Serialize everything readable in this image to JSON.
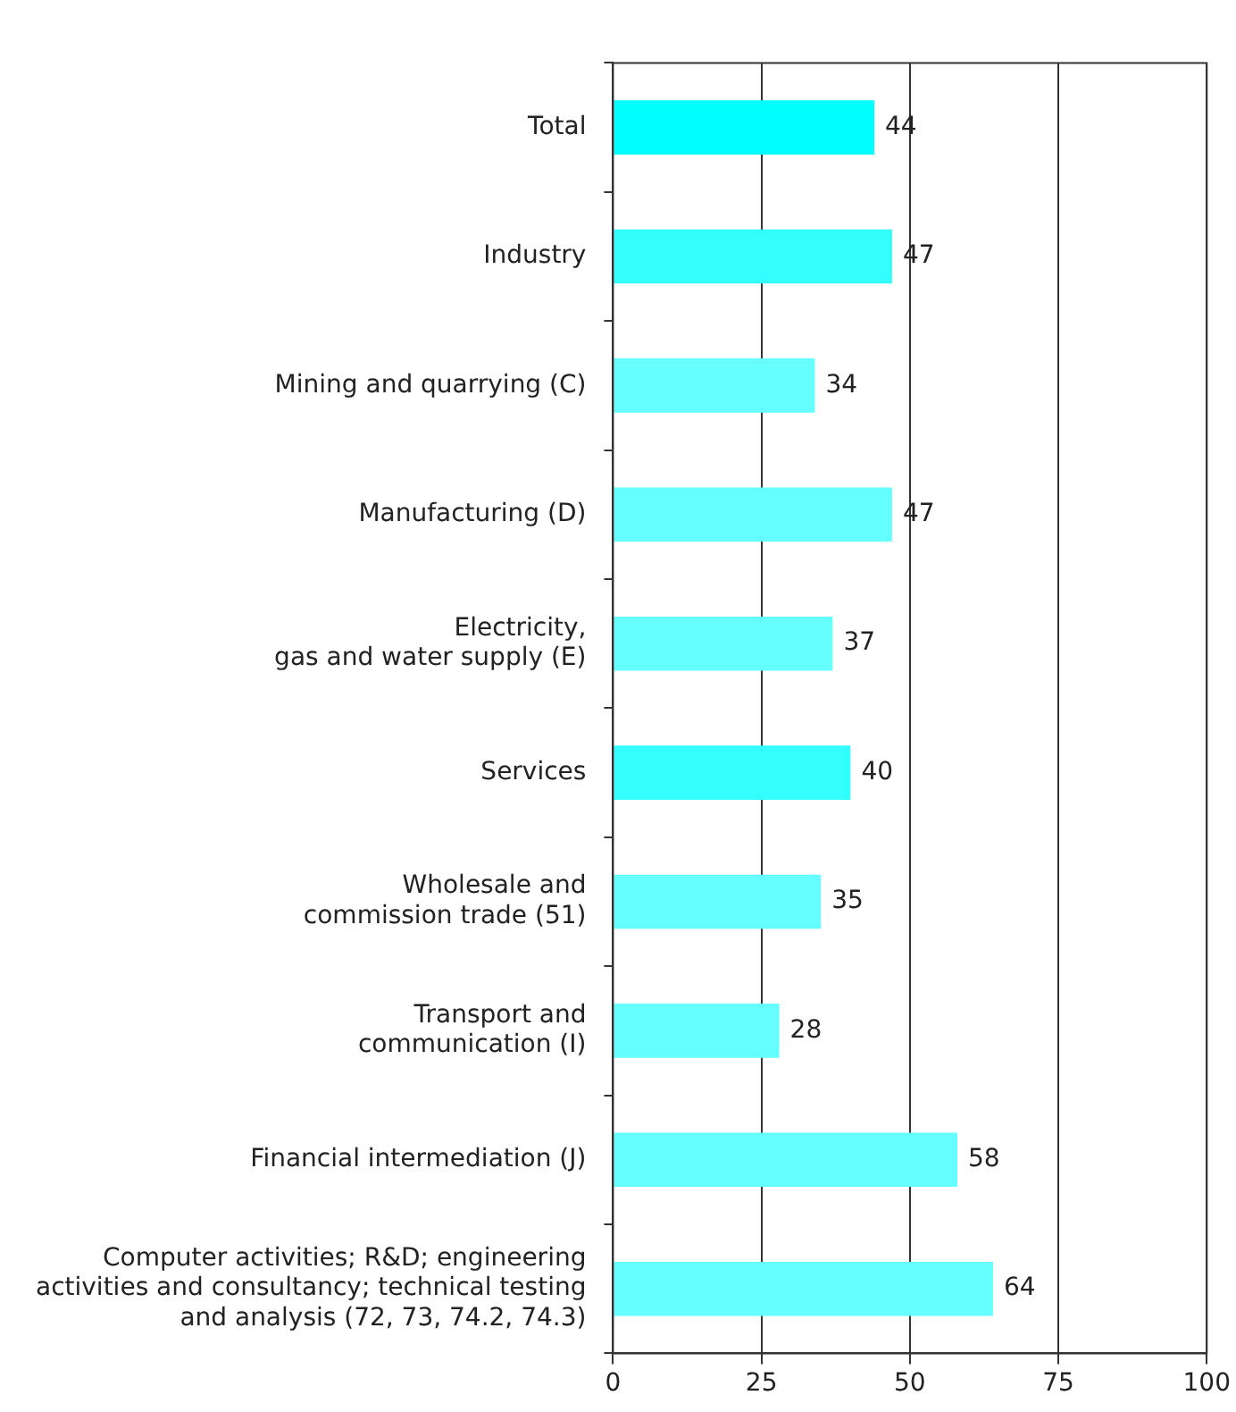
{
  "chart_data": {
    "type": "bar",
    "orientation": "horizontal",
    "categories": [
      "Total",
      "Industry",
      "Mining and quarrying (C)",
      "Manufacturing (D)",
      "Electricity,\ngas and water supply (E)",
      "Services",
      "Wholesale and\ncommission trade (51)",
      "Transport and\ncommunication (I)",
      "Financial intermediation (J)",
      "Computer activities; R&D; engineering\nactivities and consultancy; technical testing\nand analysis (72, 73, 74.2, 74.3)"
    ],
    "values": [
      44,
      47,
      34,
      47,
      37,
      40,
      35,
      28,
      58,
      64
    ],
    "colors": [
      "#00ffff",
      "#33ffff",
      "#66ffff",
      "#66ffff",
      "#66ffff",
      "#33ffff",
      "#66ffff",
      "#66ffff",
      "#66ffff",
      "#66ffff"
    ],
    "xlim": [
      0,
      100
    ],
    "xticks": [
      0,
      25,
      50,
      75,
      100
    ],
    "grid": "x",
    "data_labels": true,
    "legend": false
  }
}
